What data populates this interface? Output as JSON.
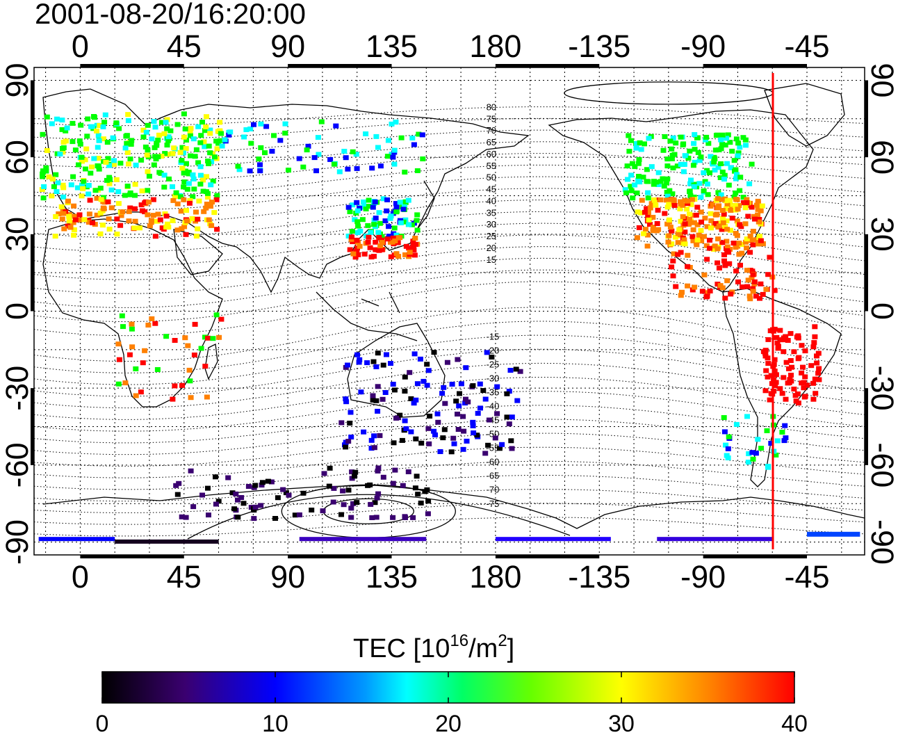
{
  "timestamp": "2001-08-20/16:20:00",
  "longitude_ticks": [
    "0",
    "45",
    "90",
    "135",
    "180",
    "-135",
    "-90",
    "-45"
  ],
  "latitude_ticks": [
    "90",
    "60",
    "30",
    "0",
    "-30",
    "-60",
    "-90"
  ],
  "magnetic_lat_labels": [
    "80",
    "75",
    "70",
    "65",
    "60",
    "55",
    "50",
    "45",
    "40",
    "35",
    "30",
    "25",
    "20",
    "15",
    "-15",
    "-20",
    "-25",
    "-30",
    "-35",
    "-40",
    "-45",
    "-50",
    "-55",
    "-60",
    "-65",
    "-70",
    "-75"
  ],
  "colorbar": {
    "title_prefix": "TEC  [10",
    "title_exp1": "16",
    "title_mid": "/m",
    "title_exp2": "2",
    "title_suffix": "]",
    "tick_labels": [
      "0",
      "10",
      "20",
      "30",
      "40"
    ],
    "range": [
      0,
      40
    ],
    "colors": [
      "#000000",
      "#3a0070",
      "#0000ff",
      "#00ffff",
      "#00ff00",
      "#ffff00",
      "#ff8000",
      "#ff0000"
    ]
  },
  "terminator_color": "#ff0000",
  "terminator_longitude": -64,
  "map_data": {
    "projection": "equirectangular",
    "lon_range": [
      -20,
      340
    ],
    "lat_range": [
      -95,
      95
    ],
    "grid_step_degrees": 15
  }
}
